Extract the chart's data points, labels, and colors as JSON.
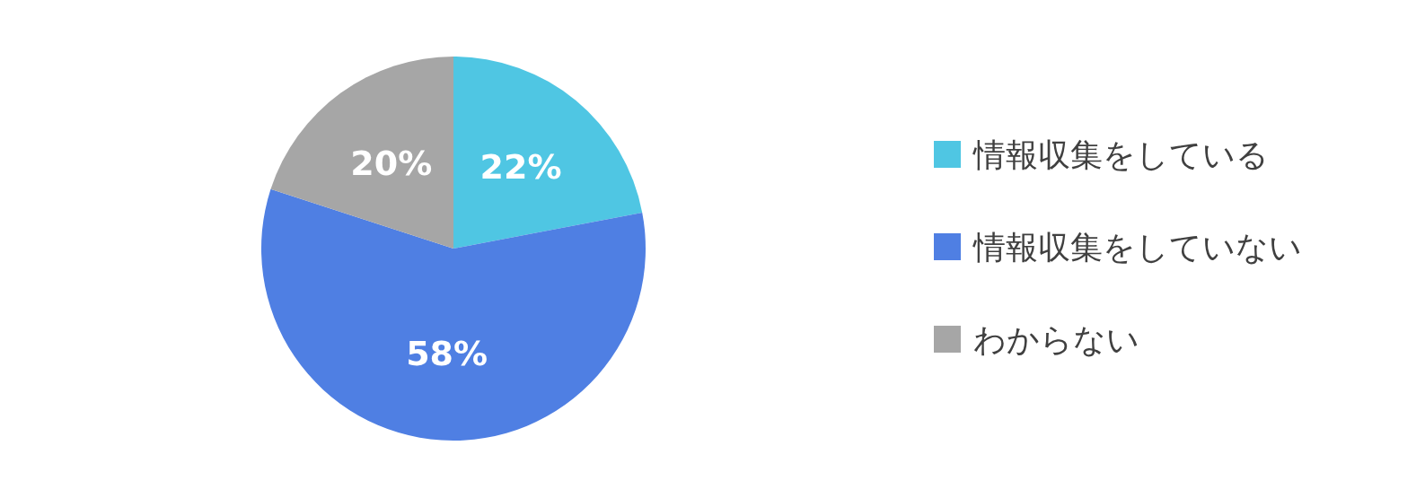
{
  "chart_data": {
    "type": "pie",
    "categories": [
      "情報収集をしている",
      "情報収集をしていない",
      "わからない"
    ],
    "values": [
      22,
      58,
      20
    ],
    "colors": [
      "#4fc6e3",
      "#4f7fe3",
      "#a6a6a6"
    ],
    "value_labels": [
      "22%",
      "58%",
      "20%"
    ],
    "legend": "right"
  }
}
